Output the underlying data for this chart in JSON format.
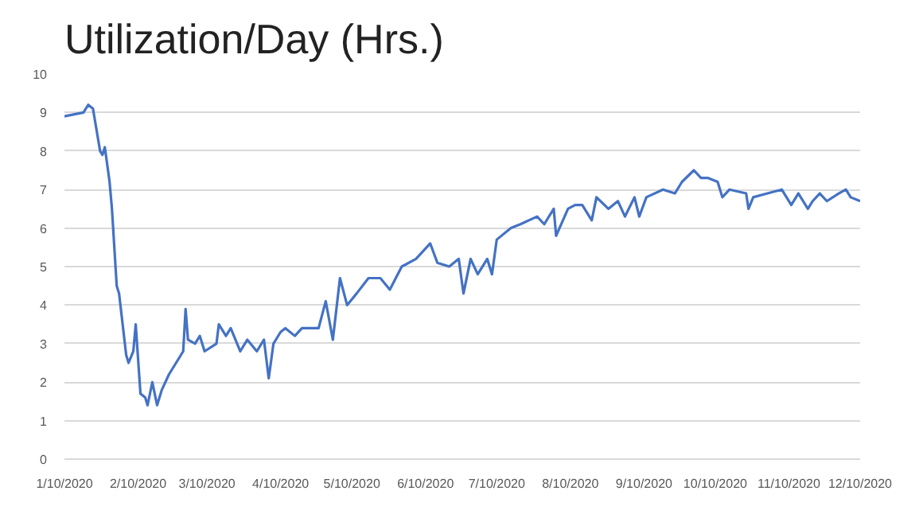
{
  "chart_data": {
    "type": "line",
    "title": "Utilization/Day (Hrs.)",
    "x": [
      "2020-01-10",
      "2020-01-18",
      "2020-01-20",
      "2020-01-22",
      "2020-01-25",
      "2020-01-26",
      "2020-01-27",
      "2020-01-29",
      "2020-01-30",
      "2020-02-01",
      "2020-02-02",
      "2020-02-05",
      "2020-02-06",
      "2020-02-08",
      "2020-02-09",
      "2020-02-11",
      "2020-02-13",
      "2020-02-14",
      "2020-02-16",
      "2020-02-18",
      "2020-02-20",
      "2020-02-23",
      "2020-02-26",
      "2020-02-29",
      "2020-03-01",
      "2020-03-02",
      "2020-03-05",
      "2020-03-07",
      "2020-03-09",
      "2020-03-14",
      "2020-03-15",
      "2020-03-18",
      "2020-03-20",
      "2020-03-24",
      "2020-03-27",
      "2020-03-31",
      "2020-04-03",
      "2020-04-05",
      "2020-04-07",
      "2020-04-10",
      "2020-04-12",
      "2020-04-16",
      "2020-04-19",
      "2020-04-26",
      "2020-04-29",
      "2020-05-02",
      "2020-05-05",
      "2020-05-08",
      "2020-05-12",
      "2020-05-17",
      "2020-05-22",
      "2020-05-26",
      "2020-05-31",
      "2020-06-06",
      "2020-06-12",
      "2020-06-15",
      "2020-06-20",
      "2020-06-24",
      "2020-06-26",
      "2020-06-29",
      "2020-07-02",
      "2020-07-06",
      "2020-07-08",
      "2020-07-10",
      "2020-07-16",
      "2020-07-20",
      "2020-07-27",
      "2020-07-30",
      "2020-08-03",
      "2020-08-04",
      "2020-08-09",
      "2020-08-12",
      "2020-08-15",
      "2020-08-19",
      "2020-08-21",
      "2020-08-26",
      "2020-08-30",
      "2020-09-02",
      "2020-09-06",
      "2020-09-08",
      "2020-09-11",
      "2020-09-18",
      "2020-09-23",
      "2020-09-26",
      "2020-10-01",
      "2020-10-04",
      "2020-10-07",
      "2020-10-11",
      "2020-10-13",
      "2020-10-16",
      "2020-10-23",
      "2020-10-24",
      "2020-10-26",
      "2020-11-01",
      "2020-11-07",
      "2020-11-11",
      "2020-11-14",
      "2020-11-18",
      "2020-11-20",
      "2020-11-23",
      "2020-11-26",
      "2020-12-01",
      "2020-12-04",
      "2020-12-06",
      "2020-12-10"
    ],
    "series": [
      {
        "color": "#4472c4",
        "values": [
          8.9,
          9.0,
          9.2,
          9.1,
          8.0,
          7.9,
          8.1,
          7.2,
          6.5,
          4.5,
          4.3,
          2.7,
          2.5,
          2.8,
          3.5,
          1.7,
          1.6,
          1.4,
          2.0,
          1.4,
          1.8,
          2.2,
          2.5,
          2.8,
          3.9,
          3.1,
          3.0,
          3.2,
          2.8,
          3.0,
          3.5,
          3.2,
          3.4,
          2.8,
          3.1,
          2.8,
          3.1,
          2.1,
          3.0,
          3.3,
          3.4,
          3.2,
          3.4,
          3.4,
          4.1,
          3.1,
          4.7,
          4.0,
          4.3,
          4.7,
          4.7,
          4.4,
          5.0,
          5.2,
          5.6,
          5.1,
          5.0,
          5.2,
          4.3,
          5.2,
          4.8,
          5.2,
          4.8,
          5.7,
          6.0,
          6.1,
          6.3,
          6.1,
          6.5,
          5.8,
          6.5,
          6.6,
          6.6,
          6.2,
          6.8,
          6.5,
          6.7,
          6.3,
          6.8,
          6.3,
          6.8,
          7.0,
          6.9,
          7.2,
          7.5,
          7.3,
          7.3,
          7.2,
          6.8,
          7.0,
          6.9,
          6.5,
          6.8,
          6.9,
          7.0,
          6.6,
          6.9,
          6.5,
          6.7,
          6.9,
          6.7,
          6.9,
          7.0,
          6.8,
          6.7
        ]
      }
    ],
    "xlim": [
      "2020-01-10",
      "2020-12-10"
    ],
    "xticks": [
      {
        "value": "2020-01-10",
        "label": "1/10/2020"
      },
      {
        "value": "2020-02-10",
        "label": "2/10/2020"
      },
      {
        "value": "2020-03-10",
        "label": "3/10/2020"
      },
      {
        "value": "2020-04-10",
        "label": "4/10/2020"
      },
      {
        "value": "2020-05-10",
        "label": "5/10/2020"
      },
      {
        "value": "2020-06-10",
        "label": "6/10/2020"
      },
      {
        "value": "2020-07-10",
        "label": "7/10/2020"
      },
      {
        "value": "2020-08-10",
        "label": "8/10/2020"
      },
      {
        "value": "2020-09-10",
        "label": "9/10/2020"
      },
      {
        "value": "2020-10-10",
        "label": "10/10/2020"
      },
      {
        "value": "2020-11-10",
        "label": "11/10/2020"
      },
      {
        "value": "2020-12-10",
        "label": "12/10/2020"
      }
    ],
    "ylim": [
      0,
      10
    ],
    "yticks": [
      0,
      1,
      2,
      3,
      4,
      5,
      6,
      7,
      8,
      9,
      10
    ],
    "grid": "y",
    "marker": "none",
    "line_style": "solid"
  }
}
